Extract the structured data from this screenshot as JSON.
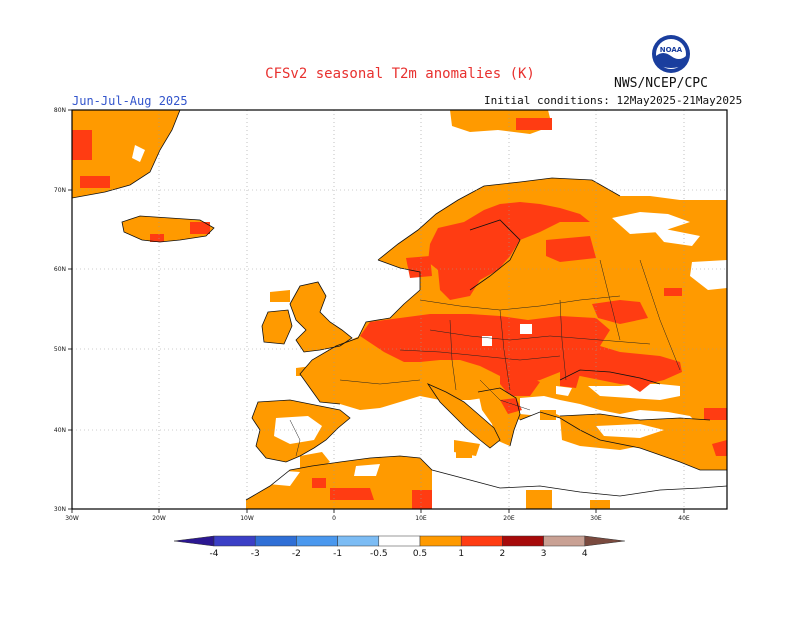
{
  "title": "CFSv2 seasonal T2m anomalies (K)",
  "agency": "NWS/NCEP/CPC",
  "period": "Jun-Jul-Aug 2025",
  "initial_conditions": "Initial conditions: 12May2025-21May2025",
  "logo": {
    "text": "NOAA",
    "icon": "noaa-logo-icon"
  },
  "lat_labels": [
    "80N",
    "70N",
    "60N",
    "50N",
    "40N",
    "30N"
  ],
  "lon_labels": [
    "30W",
    "20W",
    "10W",
    "0",
    "10E",
    "20E",
    "30E",
    "40E"
  ],
  "colorbar": {
    "labels": [
      "-4",
      "-3",
      "-2",
      "-1",
      "-0.5",
      "0.5",
      "1",
      "2",
      "3",
      "4"
    ],
    "colors": [
      "#2b1791",
      "#3b3fc6",
      "#2f6fd6",
      "#4a98ee",
      "#7cbcf4",
      "#ffffff",
      "#ff9a00",
      "#ff3c12",
      "#a60a0a",
      "#c9a194",
      "#7a4a3f"
    ]
  }
}
